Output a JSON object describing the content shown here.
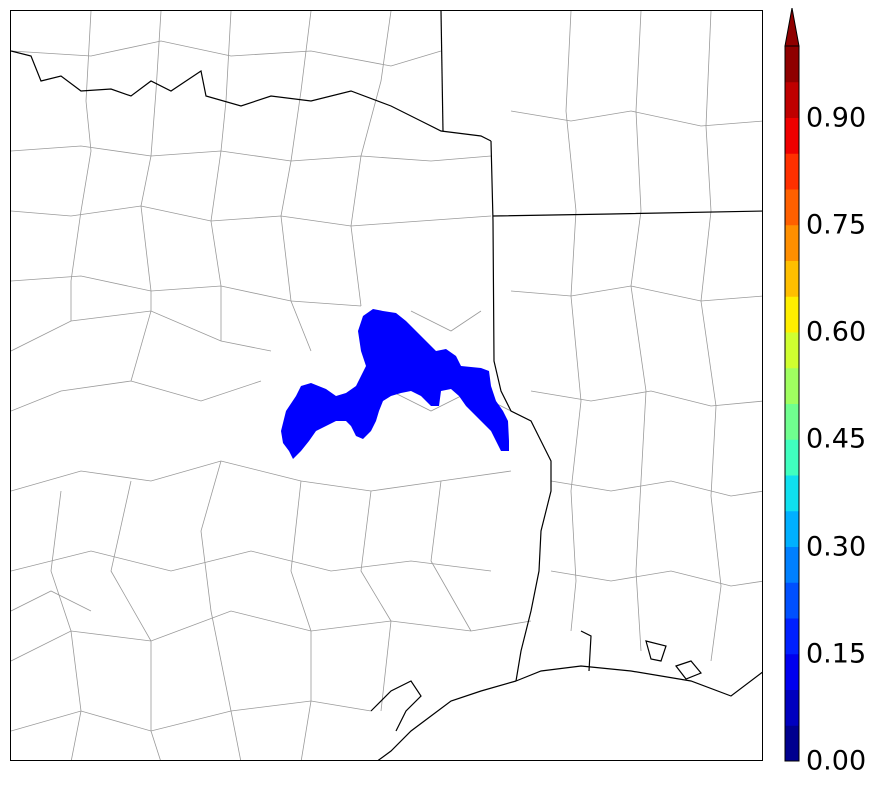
{
  "map": {
    "region": "Southeast Texas / Western Louisiana county map",
    "fill_color": "#0000ff",
    "line_color_state": "#000000",
    "line_color_county": "#999999"
  },
  "colorbar": {
    "tick_labels": [
      "0.00",
      "0.15",
      "0.30",
      "0.45",
      "0.60",
      "0.75",
      "0.90"
    ],
    "tick_values": [
      0.0,
      0.15,
      0.3,
      0.45,
      0.6,
      0.75,
      0.9
    ],
    "extend": "max",
    "range": [
      0,
      1.0
    ],
    "colors": [
      "#00008f",
      "#0000bf",
      "#0000ef",
      "#0020ff",
      "#0050ff",
      "#0080ff",
      "#00b0ff",
      "#10e0ef",
      "#40ffbf",
      "#70ff8f",
      "#a0ff60",
      "#d0ff30",
      "#ffef00",
      "#ffbf00",
      "#ff8f00",
      "#ff6000",
      "#ff3000",
      "#ef0000",
      "#bf0000",
      "#8f0000"
    ]
  }
}
